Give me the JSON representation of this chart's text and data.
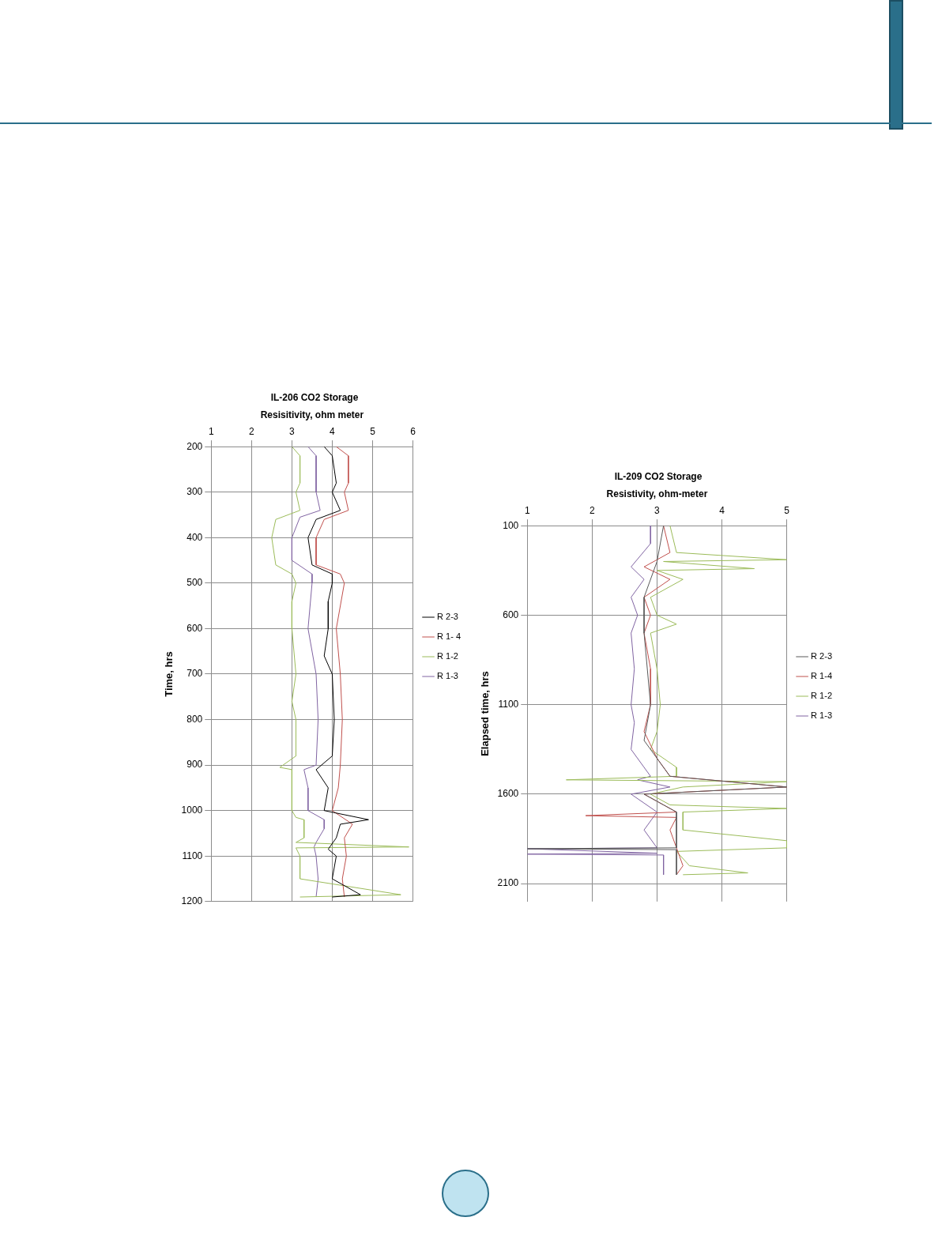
{
  "chart_data": [
    {
      "type": "line",
      "title": "IL-206 CO2 Storage",
      "xlabel": "Resisitivity, ohm meter",
      "ylabel": "Time, hrs",
      "xlim": [
        1,
        6
      ],
      "xticks": [
        1,
        2,
        3,
        4,
        5,
        6
      ],
      "ylim": [
        1200,
        200
      ],
      "yticks": [
        200,
        300,
        400,
        500,
        600,
        700,
        800,
        900,
        1000,
        1100,
        1200
      ],
      "grid": true,
      "legend": "right",
      "marker": "none",
      "series": [
        {
          "name": "R 2-3",
          "color": "#000000",
          "x": [
            3.8,
            4.0,
            4.1,
            4.0,
            4.2,
            3.6,
            3.4,
            3.5,
            4.0,
            4.0,
            3.9,
            3.9,
            3.8,
            4.0,
            4.05,
            4.0,
            3.6,
            3.9,
            3.8,
            4.9,
            4.2,
            4.1,
            3.9,
            4.1,
            4.0,
            4.7,
            4.0
          ],
          "values": [
            200,
            220,
            280,
            300,
            340,
            360,
            400,
            460,
            480,
            500,
            540,
            600,
            660,
            700,
            800,
            880,
            910,
            950,
            1000,
            1020,
            1030,
            1060,
            1085,
            1100,
            1150,
            1185,
            1190
          ]
        },
        {
          "name": "R 1- 4",
          "color": "#c0504d",
          "x": [
            4.1,
            4.4,
            4.4,
            4.3,
            4.4,
            3.8,
            3.6,
            3.6,
            4.2,
            4.3,
            4.1,
            4.2,
            4.25,
            4.2,
            4.15,
            4.0,
            4.5,
            4.3,
            4.35,
            4.25,
            4.3
          ],
          "values": [
            200,
            220,
            280,
            300,
            340,
            360,
            400,
            460,
            480,
            500,
            600,
            700,
            800,
            900,
            950,
            1000,
            1030,
            1060,
            1100,
            1150,
            1190
          ]
        },
        {
          "name": "R 1-2",
          "color": "#9bbb59",
          "x": [
            3.0,
            3.2,
            3.2,
            3.1,
            3.2,
            2.6,
            2.5,
            2.6,
            3.0,
            3.1,
            3.0,
            3.0,
            3.1,
            3.0,
            3.1,
            3.1,
            2.7,
            3.0,
            3.0,
            3.1,
            3.3,
            3.3,
            3.1,
            5.9,
            3.1,
            3.2,
            3.2,
            5.7,
            3.2
          ],
          "values": [
            200,
            220,
            280,
            300,
            340,
            360,
            400,
            460,
            480,
            500,
            540,
            600,
            700,
            760,
            800,
            880,
            905,
            910,
            1000,
            1015,
            1020,
            1060,
            1070,
            1080,
            1082,
            1100,
            1150,
            1185,
            1190
          ]
        },
        {
          "name": "R 1-3",
          "color": "#8064a2",
          "x": [
            3.4,
            3.6,
            3.6,
            3.7,
            3.2,
            3.0,
            3.0,
            3.5,
            3.5,
            3.4,
            3.6,
            3.65,
            3.6,
            3.3,
            3.4,
            3.4,
            3.8,
            3.8,
            3.6,
            3.55,
            3.6,
            3.65,
            3.6
          ],
          "values": [
            200,
            220,
            300,
            340,
            355,
            400,
            450,
            480,
            500,
            600,
            700,
            800,
            900,
            910,
            950,
            1000,
            1020,
            1040,
            1070,
            1080,
            1100,
            1150,
            1190
          ]
        }
      ]
    },
    {
      "type": "line",
      "title": "IL-209 CO2 Storage",
      "xlabel": "Resistivity, ohm-meter",
      "ylabel": "Elapsed time, hrs",
      "xlim": [
        1,
        5
      ],
      "xticks": [
        1,
        2,
        3,
        4,
        5
      ],
      "ylim": [
        2200,
        100
      ],
      "yticks": [
        100,
        600,
        1100,
        1600,
        2100
      ],
      "grid": true,
      "legend": "right",
      "marker": "none",
      "series": [
        {
          "name": "R 2-3",
          "color": "#595959",
          "x": [
            3.1,
            3.0,
            2.8,
            2.8,
            2.9,
            2.8,
            3.2,
            5.0,
            2.8,
            3.3,
            3.3,
            1.0,
            3.3,
            3.3
          ],
          "values": [
            100,
            300,
            500,
            700,
            1100,
            1300,
            1500,
            1560,
            1600,
            1700,
            1900,
            1905,
            1910,
            2050
          ]
        },
        {
          "name": "R 1-4",
          "color": "#c0504d",
          "x": [
            3.1,
            3.2,
            2.8,
            3.2,
            2.8,
            2.9,
            2.8,
            2.9,
            2.9,
            2.8,
            3.0,
            3.2,
            5.0,
            2.8,
            3.1,
            3.3,
            1.9,
            3.3,
            3.2,
            3.3,
            3.4,
            3.3
          ],
          "values": [
            100,
            250,
            330,
            400,
            500,
            600,
            700,
            900,
            1100,
            1250,
            1400,
            1500,
            1560,
            1600,
            1660,
            1700,
            1720,
            1730,
            1800,
            1900,
            2000,
            2050
          ]
        },
        {
          "name": "R 1-2",
          "color": "#9bbb59",
          "x": [
            3.2,
            3.3,
            5.0,
            3.1,
            4.5,
            3.0,
            3.4,
            2.9,
            3.0,
            3.3,
            2.9,
            3.0,
            3.05,
            3.0,
            2.9,
            3.3,
            3.3,
            1.6,
            5.0,
            3.4,
            2.9,
            3.2,
            5.0,
            3.4,
            3.4,
            5.0,
            5.0,
            3.3,
            3.5,
            4.4,
            3.4
          ],
          "values": [
            100,
            250,
            290,
            300,
            340,
            350,
            400,
            500,
            600,
            650,
            700,
            900,
            1100,
            1250,
            1350,
            1450,
            1500,
            1520,
            1530,
            1560,
            1600,
            1660,
            1680,
            1700,
            1800,
            1860,
            1900,
            1920,
            2000,
            2040,
            2050
          ]
        },
        {
          "name": "R 1-3",
          "color": "#8064a2",
          "x": [
            2.9,
            2.9,
            2.6,
            2.8,
            2.6,
            2.7,
            2.6,
            2.65,
            2.6,
            2.65,
            2.6,
            2.8,
            2.9,
            2.7,
            3.2,
            2.6,
            2.8,
            3.0,
            2.8,
            3.0,
            1.0,
            3.0,
            1.0,
            3.1,
            3.1
          ],
          "values": [
            100,
            200,
            330,
            400,
            500,
            600,
            700,
            900,
            1100,
            1200,
            1350,
            1450,
            1500,
            1520,
            1560,
            1600,
            1650,
            1700,
            1800,
            1900,
            1905,
            1930,
            1935,
            1940,
            2050
          ]
        }
      ]
    }
  ]
}
